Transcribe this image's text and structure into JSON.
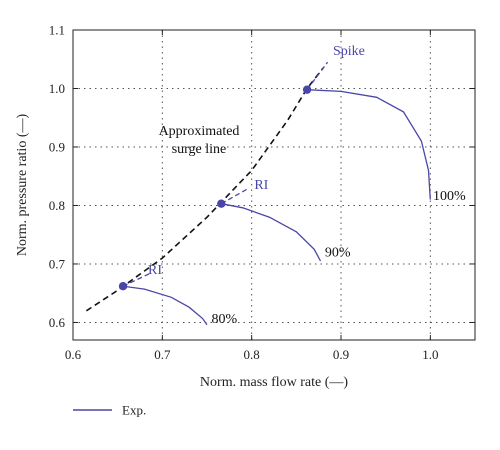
{
  "chart_data": {
    "type": "line",
    "xlabel": "Norm. mass flow rate (—)",
    "ylabel": "Norm. pressure ratio (—)",
    "xlim": [
      0.6,
      1.05
    ],
    "ylim": [
      0.57,
      1.1
    ],
    "x_ticks": [
      "0.6",
      "0.7",
      "0.8",
      "0.9",
      "1.0"
    ],
    "x_tick_values": [
      0.6,
      0.7,
      0.8,
      0.9,
      1.0
    ],
    "y_ticks": [
      "0.6",
      "0.7",
      "0.8",
      "0.9",
      "1.0",
      "1.1"
    ],
    "y_tick_values": [
      0.6,
      0.7,
      0.8,
      0.9,
      1.0,
      1.1
    ],
    "grid": true,
    "colors": {
      "series": "#4a46a8",
      "surge": "#111111",
      "grid": "#555555",
      "axis": "#222222"
    },
    "series": [
      {
        "label": "100%",
        "x": [
          0.862,
          0.9,
          0.94,
          0.97,
          0.99,
          0.998,
          1.0
        ],
        "y": [
          0.998,
          0.995,
          0.985,
          0.96,
          0.91,
          0.86,
          0.81
        ]
      },
      {
        "label": "90%",
        "x": [
          0.766,
          0.79,
          0.82,
          0.85,
          0.87,
          0.877
        ],
        "y": [
          0.803,
          0.796,
          0.78,
          0.755,
          0.725,
          0.705
        ]
      },
      {
        "label": "80%",
        "x": [
          0.656,
          0.68,
          0.71,
          0.73,
          0.745,
          0.75
        ],
        "y": [
          0.662,
          0.657,
          0.643,
          0.626,
          0.607,
          0.596
        ]
      }
    ],
    "surge_line": {
      "label_lines": [
        "Approximated",
        "surge line"
      ],
      "x": [
        0.615,
        0.65,
        0.7,
        0.75,
        0.8,
        0.84,
        0.862,
        0.88
      ],
      "y": [
        0.62,
        0.655,
        0.71,
        0.78,
        0.86,
        0.945,
        1.0,
        1.035
      ]
    },
    "markers": [
      {
        "x": 0.862,
        "y": 0.998
      },
      {
        "x": 0.766,
        "y": 0.803
      },
      {
        "x": 0.656,
        "y": 0.662
      }
    ],
    "dashed_blue": [
      {
        "x": [
          0.862,
          0.885
        ],
        "y": [
          0.998,
          1.045
        ]
      },
      {
        "x": [
          0.766,
          0.795
        ],
        "y": [
          0.803,
          0.828
        ]
      },
      {
        "x": [
          0.656,
          0.688
        ],
        "y": [
          0.662,
          0.685
        ]
      }
    ],
    "annotations": [
      {
        "text": "Spike",
        "x": 0.891,
        "y": 1.057,
        "color": "blue"
      },
      {
        "text": "RI",
        "x": 0.803,
        "y": 0.828,
        "color": "blue"
      },
      {
        "text": "RI",
        "x": 0.684,
        "y": 0.683,
        "color": "blue"
      },
      {
        "text": "100%",
        "x": 1.003,
        "y": 0.809,
        "color": "black"
      },
      {
        "text": "90%",
        "x": 0.882,
        "y": 0.713,
        "color": "black"
      },
      {
        "text": "80%",
        "x": 0.755,
        "y": 0.599,
        "color": "black"
      }
    ],
    "legend": {
      "position": "bottom-left",
      "entries": [
        "Exp."
      ]
    }
  }
}
